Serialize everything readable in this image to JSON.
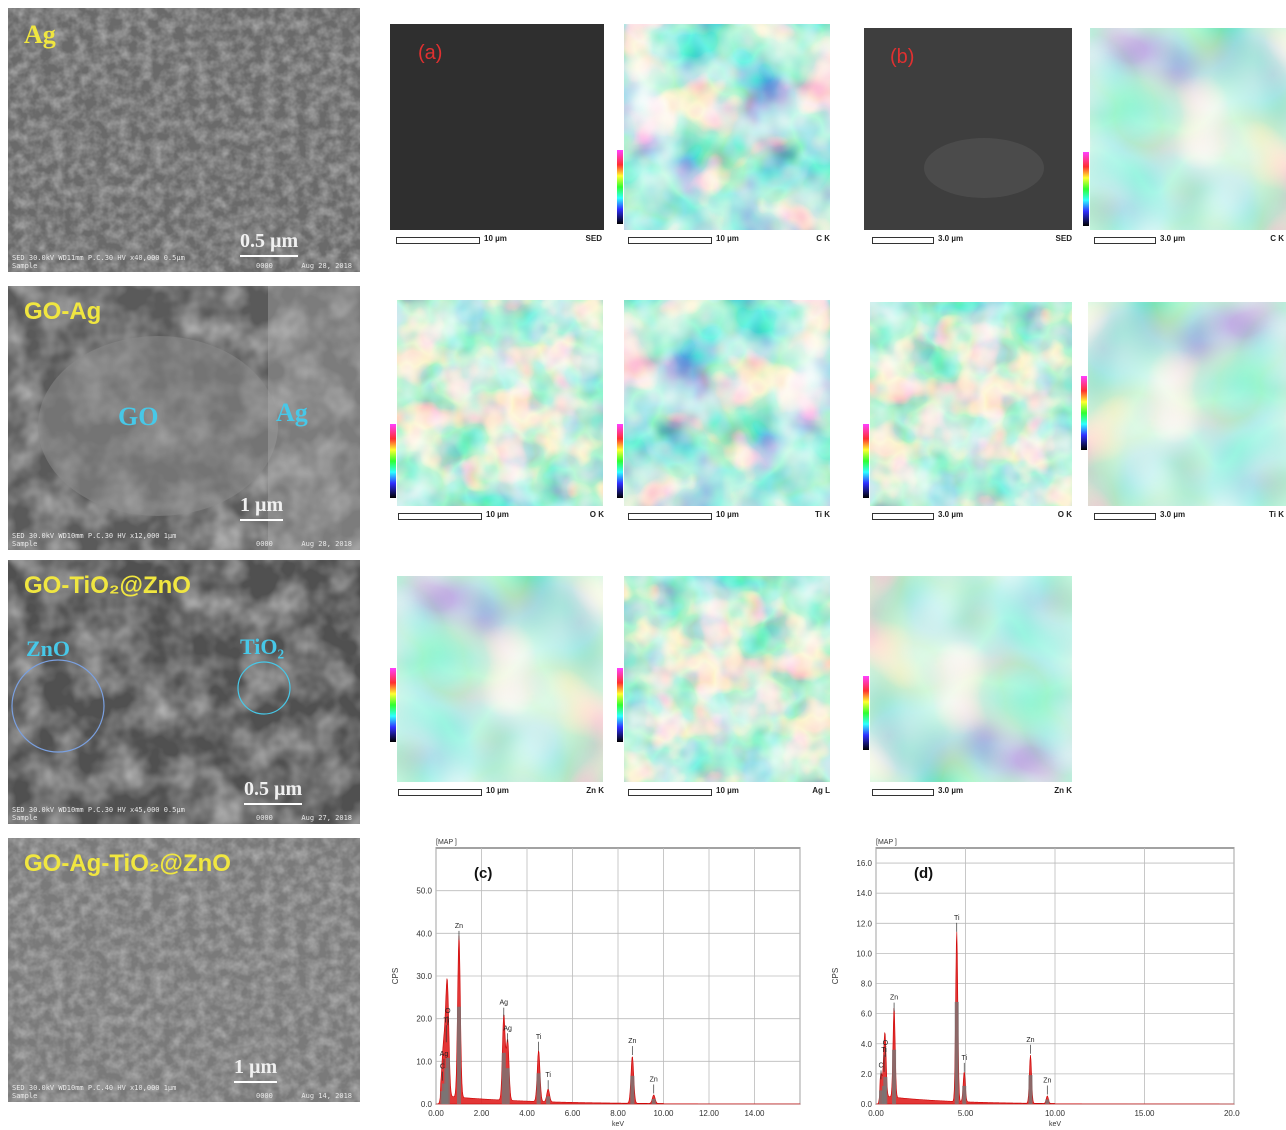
{
  "sem": [
    {
      "label": "Ag",
      "scale": "0.5 µm",
      "footer_line1": "SED 30.0kV WD11mm P.C.30  HV    x40,000   0.5µm",
      "footer_line2": "Sample",
      "footer_id": "0000",
      "footer_date": "Aug 28, 2018"
    },
    {
      "label": "GO-Ag",
      "scale": "1 µm",
      "footer_line1": "SED 30.0kV WD10mm P.C.30  HV    x12,000   1µm",
      "footer_line2": "Sample",
      "footer_id": "0000",
      "footer_date": "Aug 28, 2018",
      "annot_go": "GO",
      "annot_ag": "Ag"
    },
    {
      "label": "GO-TiO₂@ZnO",
      "scale": "0.5 µm",
      "footer_line1": "SED 30.0kV WD10mm P.C.30  HV    x45,000   0.5µm",
      "footer_line2": "Sample",
      "footer_id": "0000",
      "footer_date": "Aug 27, 2018",
      "annot_zno": "ZnO",
      "annot_tio2": "TiO₂"
    },
    {
      "label": "GO-Ag-TiO₂@ZnO",
      "scale": "1 µm",
      "footer_line1": "SED 30.0kV WD10mm P.C.40  HV    x10,000   1µm",
      "footer_line2": "Sample",
      "footer_id": "0000",
      "footer_date": "Aug 14, 2018"
    }
  ],
  "panels": {
    "a": "(a)",
    "b": "(b)",
    "c": "(c)",
    "d": "(d)"
  },
  "maps_a": [
    {
      "scale": "10 µm",
      "element": "SED"
    },
    {
      "scale": "10 µm",
      "element": "C K"
    },
    {
      "scale": "10 µm",
      "element": "O K"
    },
    {
      "scale": "10 µm",
      "element": "Ti K"
    },
    {
      "scale": "10 µm",
      "element": "Zn K"
    },
    {
      "scale": "10 µm",
      "element": "Ag L"
    }
  ],
  "maps_b": [
    {
      "scale": "3.0 µm",
      "element": "SED"
    },
    {
      "scale": "3.0 µm",
      "element": "C K"
    },
    {
      "scale": "3.0 µm",
      "element": "O K"
    },
    {
      "scale": "3.0 µm",
      "element": "Ti K"
    },
    {
      "scale": "3.0 µm",
      "element": "Zn K"
    }
  ],
  "chart_data": [
    {
      "type": "line",
      "panel": "(c)",
      "header": "[MAP  ]",
      "xlabel": "keV",
      "ylabel": "CPS",
      "xlim": [
        0,
        16
      ],
      "ylim": [
        0,
        60
      ],
      "x_ticks": [
        "0.00",
        "2.00",
        "4.00",
        "6.00",
        "8.00",
        "10.00",
        "12.00",
        "14.00"
      ],
      "y_ticks": [
        "0.0",
        "10.0",
        "20.0",
        "30.0",
        "40.0",
        "50.0"
      ],
      "peaks": [
        {
          "label": "C",
          "kev": 0.28,
          "cps": 5
        },
        {
          "label": "O",
          "kev": 0.52,
          "cps": 18
        },
        {
          "label": "Ti",
          "kev": 0.45,
          "cps": 14
        },
        {
          "label": "Ag",
          "kev": 0.35,
          "cps": 8
        },
        {
          "label": "Zn",
          "kev": 1.01,
          "cps": 38
        },
        {
          "label": "Ag",
          "kev": 2.98,
          "cps": 20
        },
        {
          "label": "Ag",
          "kev": 3.15,
          "cps": 14
        },
        {
          "label": "Ti",
          "kev": 4.51,
          "cps": 12
        },
        {
          "label": "Ti",
          "kev": 4.93,
          "cps": 3
        },
        {
          "label": "Zn",
          "kev": 8.63,
          "cps": 11
        },
        {
          "label": "Zn",
          "kev": 9.57,
          "cps": 2
        }
      ]
    },
    {
      "type": "line",
      "panel": "(d)",
      "header": "[MAP  ]",
      "xlabel": "keV",
      "ylabel": "CPS",
      "xlim": [
        0,
        20
      ],
      "ylim": [
        0,
        17
      ],
      "x_ticks": [
        "0.00",
        "5.00",
        "10.00",
        "15.00",
        "20.00"
      ],
      "y_ticks": [
        "0.0",
        "2.0",
        "4.0",
        "6.0",
        "8.0",
        "10.0",
        "12.0",
        "14.0",
        "16.0"
      ],
      "peaks": [
        {
          "label": "C",
          "kev": 0.28,
          "cps": 1.5
        },
        {
          "label": "O",
          "kev": 0.52,
          "cps": 3
        },
        {
          "label": "Ti",
          "kev": 0.45,
          "cps": 2
        },
        {
          "label": "Zn",
          "kev": 1.01,
          "cps": 6
        },
        {
          "label": "Ti",
          "kev": 4.51,
          "cps": 11.3
        },
        {
          "label": "Ti",
          "kev": 4.93,
          "cps": 2
        },
        {
          "label": "Zn",
          "kev": 8.63,
          "cps": 3.2
        },
        {
          "label": "Zn",
          "kev": 9.57,
          "cps": 0.5
        }
      ]
    }
  ]
}
